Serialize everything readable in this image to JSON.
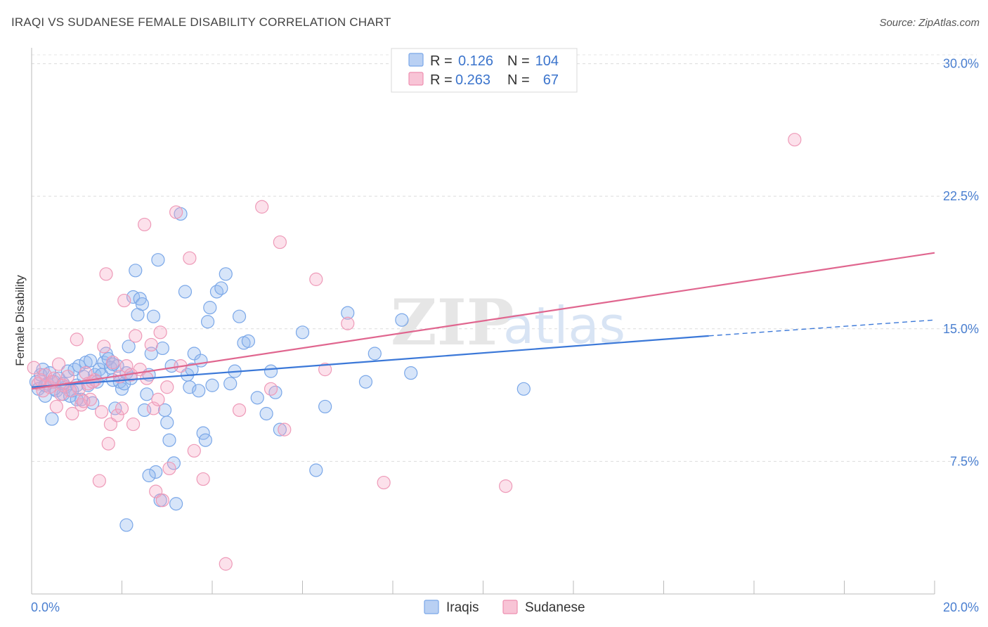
{
  "title": "IRAQI VS SUDANESE FEMALE DISABILITY CORRELATION CHART",
  "source": "Source: ZipAtlas.com",
  "watermark": {
    "zip": "ZIP",
    "atlas": "atlas"
  },
  "legend": {
    "rows": [
      {
        "r_label": "R =",
        "r_value": "0.126",
        "n_label": "N =",
        "n_value": "104",
        "color": "#7aa7e8",
        "fill": "#b9d0f3"
      },
      {
        "r_label": "R =",
        "r_value": "0.263",
        "n_label": "N =",
        "n_value": "67",
        "color": "#ee8fb0",
        "fill": "#f8c4d6"
      }
    ]
  },
  "chart_data": {
    "type": "scatter",
    "title": "IRAQI VS SUDANESE FEMALE DISABILITY CORRELATION CHART",
    "xlabel": "",
    "ylabel": "Female Disability",
    "xlim": [
      0,
      20
    ],
    "ylim": [
      0,
      30.5
    ],
    "x_tick_labels": [
      "0.0%",
      "20.0%"
    ],
    "y_ticks": [
      7.5,
      15.0,
      22.5,
      30.0
    ],
    "y_tick_labels": [
      "7.5%",
      "15.0%",
      "22.5%",
      "30.0%"
    ],
    "grid": true,
    "legend_position": "top-center",
    "series": [
      {
        "name": "Iraqis",
        "color": "#3b78d8",
        "points": [
          [
            0.1,
            12.0
          ],
          [
            0.15,
            11.6
          ],
          [
            0.2,
            12.4
          ],
          [
            0.25,
            12.7
          ],
          [
            0.3,
            11.2
          ],
          [
            0.35,
            11.9
          ],
          [
            0.4,
            12.5
          ],
          [
            0.45,
            9.9
          ],
          [
            0.5,
            12.0
          ],
          [
            0.55,
            11.5
          ],
          [
            0.6,
            12.2
          ],
          [
            0.7,
            11.3
          ],
          [
            0.75,
            11.7
          ],
          [
            0.8,
            12.6
          ],
          [
            0.85,
            11.2
          ],
          [
            0.9,
            11.5
          ],
          [
            0.95,
            12.7
          ],
          [
            1.0,
            11.8
          ],
          [
            1.05,
            12.9
          ],
          [
            1.1,
            11.0
          ],
          [
            1.15,
            12.3
          ],
          [
            1.2,
            13.1
          ],
          [
            1.25,
            11.8
          ],
          [
            1.3,
            13.2
          ],
          [
            1.35,
            10.8
          ],
          [
            1.4,
            12.4
          ],
          [
            1.45,
            12.0
          ],
          [
            1.5,
            12.7
          ],
          [
            1.55,
            12.4
          ],
          [
            1.6,
            13.1
          ],
          [
            1.65,
            13.6
          ],
          [
            1.7,
            13.3
          ],
          [
            1.75,
            12.8
          ],
          [
            1.8,
            12.1
          ],
          [
            1.85,
            10.5
          ],
          [
            1.9,
            12.9
          ],
          [
            1.95,
            12.0
          ],
          [
            2.0,
            11.6
          ],
          [
            2.05,
            11.9
          ],
          [
            2.1,
            12.5
          ],
          [
            2.15,
            14.0
          ],
          [
            2.2,
            12.2
          ],
          [
            2.25,
            16.8
          ],
          [
            2.3,
            18.3
          ],
          [
            2.35,
            15.8
          ],
          [
            2.4,
            16.7
          ],
          [
            2.45,
            16.4
          ],
          [
            2.5,
            10.4
          ],
          [
            2.55,
            11.3
          ],
          [
            2.6,
            12.4
          ],
          [
            2.65,
            13.6
          ],
          [
            2.7,
            15.7
          ],
          [
            2.75,
            6.9
          ],
          [
            2.8,
            18.9
          ],
          [
            2.85,
            5.3
          ],
          [
            2.9,
            13.9
          ],
          [
            2.95,
            10.4
          ],
          [
            3.0,
            9.7
          ],
          [
            3.05,
            8.7
          ],
          [
            3.1,
            12.9
          ],
          [
            3.15,
            7.4
          ],
          [
            3.2,
            5.1
          ],
          [
            3.3,
            21.5
          ],
          [
            3.4,
            17.1
          ],
          [
            3.45,
            12.4
          ],
          [
            3.5,
            11.7
          ],
          [
            3.55,
            12.7
          ],
          [
            3.6,
            13.6
          ],
          [
            3.7,
            11.5
          ],
          [
            3.75,
            13.2
          ],
          [
            3.8,
            9.1
          ],
          [
            3.85,
            8.7
          ],
          [
            3.9,
            15.4
          ],
          [
            3.95,
            16.2
          ],
          [
            4.0,
            11.8
          ],
          [
            4.1,
            17.1
          ],
          [
            4.2,
            17.3
          ],
          [
            4.3,
            18.1
          ],
          [
            4.4,
            11.9
          ],
          [
            4.5,
            12.6
          ],
          [
            4.6,
            15.7
          ],
          [
            4.7,
            14.2
          ],
          [
            4.8,
            14.3
          ],
          [
            5.0,
            11.1
          ],
          [
            5.2,
            10.2
          ],
          [
            5.3,
            12.6
          ],
          [
            5.4,
            11.4
          ],
          [
            5.5,
            9.3
          ],
          [
            6.0,
            14.8
          ],
          [
            6.3,
            7.0
          ],
          [
            6.5,
            10.6
          ],
          [
            7.0,
            15.9
          ],
          [
            7.4,
            12.0
          ],
          [
            7.6,
            13.6
          ],
          [
            8.2,
            15.5
          ],
          [
            8.4,
            12.5
          ],
          [
            10.9,
            11.6
          ],
          [
            2.6,
            6.7
          ],
          [
            2.1,
            3.9
          ],
          [
            1.0,
            11.0
          ],
          [
            0.7,
            11.9
          ],
          [
            0.5,
            11.6
          ],
          [
            0.3,
            11.8
          ],
          [
            1.8,
            13.0
          ]
        ],
        "trend": {
          "x0": 0,
          "y0": 11.7,
          "x1": 15.0,
          "y1": 14.6,
          "dashed_to_x": 20,
          "dashed_to_y": 15.5
        }
      },
      {
        "name": "Sudanese",
        "color": "#e0668f",
        "points": [
          [
            0.05,
            12.8
          ],
          [
            0.15,
            11.9
          ],
          [
            0.25,
            11.5
          ],
          [
            0.3,
            12.4
          ],
          [
            0.4,
            11.7
          ],
          [
            0.5,
            12.2
          ],
          [
            0.55,
            10.6
          ],
          [
            0.6,
            13.0
          ],
          [
            0.7,
            11.8
          ],
          [
            0.8,
            12.3
          ],
          [
            0.9,
            10.2
          ],
          [
            1.0,
            14.4
          ],
          [
            1.05,
            11.6
          ],
          [
            1.1,
            10.7
          ],
          [
            1.2,
            12.5
          ],
          [
            1.25,
            11.9
          ],
          [
            1.3,
            11.0
          ],
          [
            1.4,
            12.1
          ],
          [
            1.5,
            6.4
          ],
          [
            1.55,
            10.3
          ],
          [
            1.6,
            14.0
          ],
          [
            1.65,
            18.1
          ],
          [
            1.7,
            8.5
          ],
          [
            1.75,
            9.6
          ],
          [
            1.8,
            13.1
          ],
          [
            1.9,
            10.1
          ],
          [
            2.0,
            10.5
          ],
          [
            2.05,
            16.6
          ],
          [
            2.1,
            12.9
          ],
          [
            2.2,
            12.4
          ],
          [
            2.25,
            9.6
          ],
          [
            2.3,
            14.6
          ],
          [
            2.4,
            12.7
          ],
          [
            2.5,
            20.9
          ],
          [
            2.55,
            12.2
          ],
          [
            2.65,
            14.1
          ],
          [
            2.7,
            10.5
          ],
          [
            2.8,
            11.0
          ],
          [
            2.75,
            5.8
          ],
          [
            2.85,
            14.8
          ],
          [
            2.9,
            5.3
          ],
          [
            3.0,
            11.7
          ],
          [
            3.05,
            7.1
          ],
          [
            3.2,
            21.6
          ],
          [
            3.3,
            12.9
          ],
          [
            3.5,
            19.0
          ],
          [
            3.6,
            8.1
          ],
          [
            3.8,
            6.5
          ],
          [
            4.3,
            1.7
          ],
          [
            4.6,
            10.4
          ],
          [
            5.1,
            21.9
          ],
          [
            5.3,
            11.6
          ],
          [
            5.5,
            19.9
          ],
          [
            5.6,
            9.3
          ],
          [
            6.3,
            17.8
          ],
          [
            6.5,
            12.7
          ],
          [
            7.0,
            15.3
          ],
          [
            7.8,
            6.3
          ],
          [
            10.5,
            6.1
          ],
          [
            16.9,
            25.7
          ],
          [
            0.2,
            12.1
          ],
          [
            0.45,
            12.0
          ],
          [
            0.85,
            11.5
          ],
          [
            1.15,
            10.9
          ],
          [
            1.35,
            12.0
          ],
          [
            0.65,
            11.3
          ],
          [
            1.95,
            12.3
          ]
        ],
        "trend": {
          "x0": 0,
          "y0": 11.6,
          "x1": 20,
          "y1": 19.3
        }
      }
    ]
  }
}
